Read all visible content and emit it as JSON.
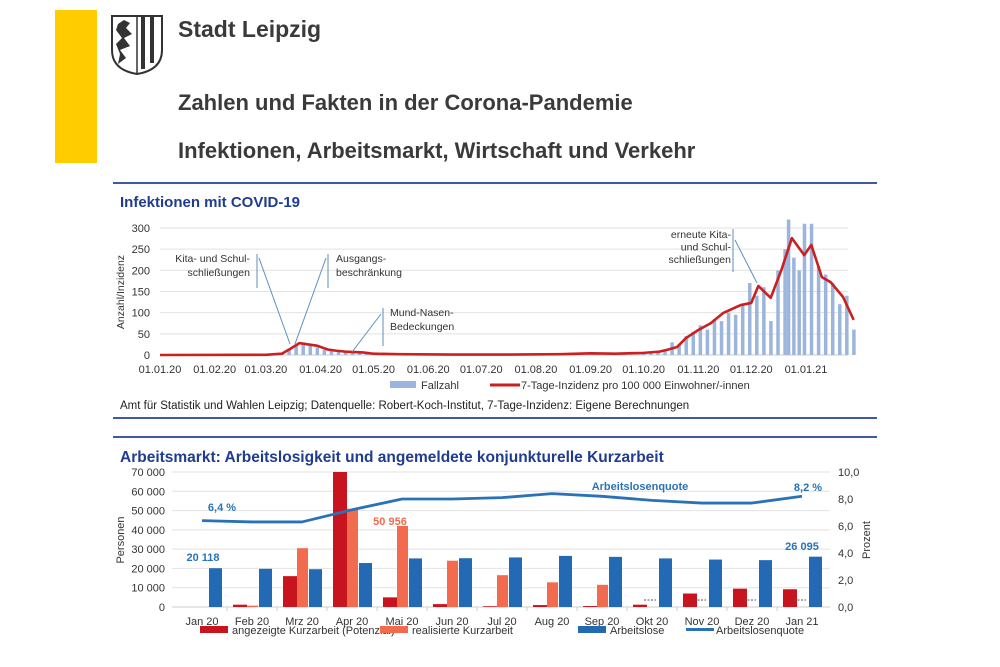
{
  "header": {
    "city": "Stadt Leipzig",
    "title_line1": "Zahlen und Fakten in der Corona-Pandemie",
    "title_line2": "Infektionen, Arbeitsmarkt, Wirtschaft und Verkehr",
    "accent_color": "#ffcc00",
    "rule_color": "#3d5aa8",
    "logo": "coat-of-arms-leipzig-lion-stripes"
  },
  "section1": {
    "title": "Infektionen mit COVID-19",
    "source": "Amt für Statistik und Wahlen Leipzig; Datenquelle: Robert-Koch-Institut, 7-Tage-Inzidenz: Eigene Berechnungen"
  },
  "section2": {
    "title": "Arbeitsmarkt: Arbeitslosigkeit und angemeldete konjunkturelle Kurzarbeit"
  },
  "chart_data": [
    {
      "type": "bar+line",
      "ylabel": "Anzahl/Inzidenz",
      "ylim": [
        0,
        300
      ],
      "yticks": [
        "0",
        "50",
        "100",
        "150",
        "200",
        "250",
        "300"
      ],
      "xticks": [
        "01.01.20",
        "01.02.20",
        "01.03.20",
        "01.04.20",
        "01.05.20",
        "01.06.20",
        "01.07.20",
        "01.08.20",
        "01.09.20",
        "01.10.20",
        "01.11.20",
        "01.12.20",
        "01.01.21"
      ],
      "xlim": [
        "2020-01-01",
        "2021-01-31"
      ],
      "grid": true,
      "legend_position": "bottom",
      "series": [
        {
          "name": "Fallzahl",
          "kind": "bar",
          "color": "#9bb5dc",
          "points": [
            [
              "2020-03-10",
              5
            ],
            [
              "2020-03-14",
              15
            ],
            [
              "2020-03-18",
              25
            ],
            [
              "2020-03-22",
              30
            ],
            [
              "2020-03-26",
              22
            ],
            [
              "2020-03-30",
              18
            ],
            [
              "2020-04-03",
              12
            ],
            [
              "2020-04-07",
              10
            ],
            [
              "2020-04-11",
              8
            ],
            [
              "2020-04-15",
              6
            ],
            [
              "2020-04-19",
              7
            ],
            [
              "2020-04-23",
              8
            ],
            [
              "2020-04-27",
              5
            ],
            [
              "2020-05-01",
              3
            ],
            [
              "2020-06-01",
              2
            ],
            [
              "2020-07-01",
              1
            ],
            [
              "2020-08-01",
              2
            ],
            [
              "2020-08-25",
              6
            ],
            [
              "2020-09-05",
              3
            ],
            [
              "2020-09-20",
              4
            ],
            [
              "2020-10-01",
              5
            ],
            [
              "2020-10-05",
              8
            ],
            [
              "2020-10-09",
              6
            ],
            [
              "2020-10-13",
              12
            ],
            [
              "2020-10-17",
              30
            ],
            [
              "2020-10-21",
              25
            ],
            [
              "2020-10-25",
              45
            ],
            [
              "2020-10-29",
              55
            ],
            [
              "2020-11-02",
              70
            ],
            [
              "2020-11-06",
              60
            ],
            [
              "2020-11-10",
              85
            ],
            [
              "2020-11-14",
              80
            ],
            [
              "2020-11-18",
              100
            ],
            [
              "2020-11-22",
              95
            ],
            [
              "2020-11-26",
              120
            ],
            [
              "2020-11-30",
              170
            ],
            [
              "2020-12-04",
              140
            ],
            [
              "2020-12-08",
              160
            ],
            [
              "2020-12-12",
              80
            ],
            [
              "2020-12-16",
              200
            ],
            [
              "2020-12-20",
              250
            ],
            [
              "2020-12-22",
              320
            ],
            [
              "2020-12-25",
              230
            ],
            [
              "2020-12-28",
              200
            ],
            [
              "2020-12-31",
              310
            ],
            [
              "2021-01-04",
              310
            ],
            [
              "2021-01-08",
              210
            ],
            [
              "2021-01-12",
              190
            ],
            [
              "2021-01-16",
              170
            ],
            [
              "2021-01-20",
              120
            ],
            [
              "2021-01-24",
              140
            ],
            [
              "2021-01-28",
              60
            ]
          ]
        },
        {
          "name": "7-Tage-Inzidenz pro 100 000 Einwohner/-innen",
          "kind": "line",
          "color": "#cc1f1f",
          "points": [
            [
              "2020-01-01",
              0
            ],
            [
              "2020-03-01",
              0.5
            ],
            [
              "2020-03-10",
              3
            ],
            [
              "2020-03-15",
              15
            ],
            [
              "2020-03-20",
              28
            ],
            [
              "2020-03-25",
              25
            ],
            [
              "2020-03-30",
              22
            ],
            [
              "2020-04-05",
              13
            ],
            [
              "2020-04-10",
              10
            ],
            [
              "2020-04-15",
              8
            ],
            [
              "2020-04-20",
              7
            ],
            [
              "2020-04-25",
              6
            ],
            [
              "2020-05-01",
              3
            ],
            [
              "2020-05-15",
              2
            ],
            [
              "2020-06-15",
              1
            ],
            [
              "2020-07-15",
              1
            ],
            [
              "2020-08-15",
              2
            ],
            [
              "2020-09-01",
              4
            ],
            [
              "2020-09-15",
              3
            ],
            [
              "2020-10-01",
              5
            ],
            [
              "2020-10-10",
              8
            ],
            [
              "2020-10-15",
              13
            ],
            [
              "2020-10-20",
              19
            ],
            [
              "2020-10-25",
              40
            ],
            [
              "2020-11-01",
              59
            ],
            [
              "2020-11-08",
              75
            ],
            [
              "2020-11-15",
              99
            ],
            [
              "2020-11-25",
              118
            ],
            [
              "2020-12-01",
              123
            ],
            [
              "2020-12-05",
              163
            ],
            [
              "2020-12-12",
              135
            ],
            [
              "2020-12-18",
              200
            ],
            [
              "2020-12-24",
              276
            ],
            [
              "2020-12-31",
              236
            ],
            [
              "2021-01-04",
              260
            ],
            [
              "2021-01-10",
              184
            ],
            [
              "2021-01-15",
              172
            ],
            [
              "2021-01-22",
              137
            ],
            [
              "2021-01-28",
              83
            ]
          ]
        }
      ],
      "annotations": [
        {
          "lines": [
            "Kita- und Schul-",
            "schließungen"
          ]
        },
        {
          "lines": [
            "Ausgangs-",
            "beschränkung"
          ]
        },
        {
          "lines": [
            "Mund-Nasen-",
            "Bedeckungen"
          ]
        },
        {
          "lines": [
            "erneute Kita-",
            "und Schul-",
            "schließungen"
          ]
        }
      ]
    },
    {
      "type": "bar+line",
      "ylabel": "Personen",
      "y2label": "Prozent",
      "ylim": [
        0,
        70000
      ],
      "y2lim": [
        0,
        10
      ],
      "yticks": [
        "0",
        "10 000",
        "20 000",
        "30 000",
        "40 000",
        "50 000",
        "60 000",
        "70 000"
      ],
      "y2ticks": [
        "0,0",
        "2,0",
        "4,0",
        "6,0",
        "8,0",
        "10,0"
      ],
      "categories": [
        "Jan 20",
        "Feb 20",
        "Mrz 20",
        "Apr 20",
        "Mai 20",
        "Jun 20",
        "Jul 20",
        "Aug 20",
        "Sep 20",
        "Okt 20",
        "Nov 20",
        "Dez 20",
        "Jan 21"
      ],
      "grid": true,
      "legend_position": "bottom",
      "series": [
        {
          "name": "angezeigte Kurzarbeit (Potenzial)",
          "kind": "bar",
          "color": "#c8141e",
          "values": [
            0,
            1200,
            16000,
            70000,
            5000,
            1500,
            400,
            1000,
            500,
            1200,
            7000,
            9500,
            9200
          ]
        },
        {
          "name": "realisierte Kurzarbeit",
          "kind": "bar",
          "color": "#f26b4f",
          "values": [
            0,
            700,
            30500,
            50956,
            42000,
            24000,
            16500,
            12800,
            11500,
            null,
            null,
            null,
            null
          ]
        },
        {
          "name": "Arbeitslose",
          "kind": "bar",
          "color": "#2469b3",
          "values": [
            20118,
            19800,
            19600,
            22800,
            25200,
            25300,
            25700,
            26500,
            26000,
            25200,
            24600,
            24300,
            26095
          ]
        },
        {
          "name": "Arbeitslosenquote",
          "kind": "line",
          "axis": "y2",
          "color": "#2a72b8",
          "values": [
            6.4,
            6.3,
            6.3,
            7.2,
            8.0,
            8.0,
            8.1,
            8.4,
            8.2,
            7.9,
            7.7,
            7.7,
            8.2
          ]
        }
      ],
      "data_labels": [
        {
          "text": "6,4 %",
          "color": "#2a72b8"
        },
        {
          "text": "20 118",
          "color": "#2a72b8"
        },
        {
          "text": "50 956",
          "color": "#f26b4f"
        },
        {
          "text": "Arbeitslosenquote",
          "color": "#2a72b8"
        },
        {
          "text": "8,2 %",
          "color": "#2a72b8"
        },
        {
          "text": "26 095",
          "color": "#2a72b8"
        }
      ]
    }
  ]
}
